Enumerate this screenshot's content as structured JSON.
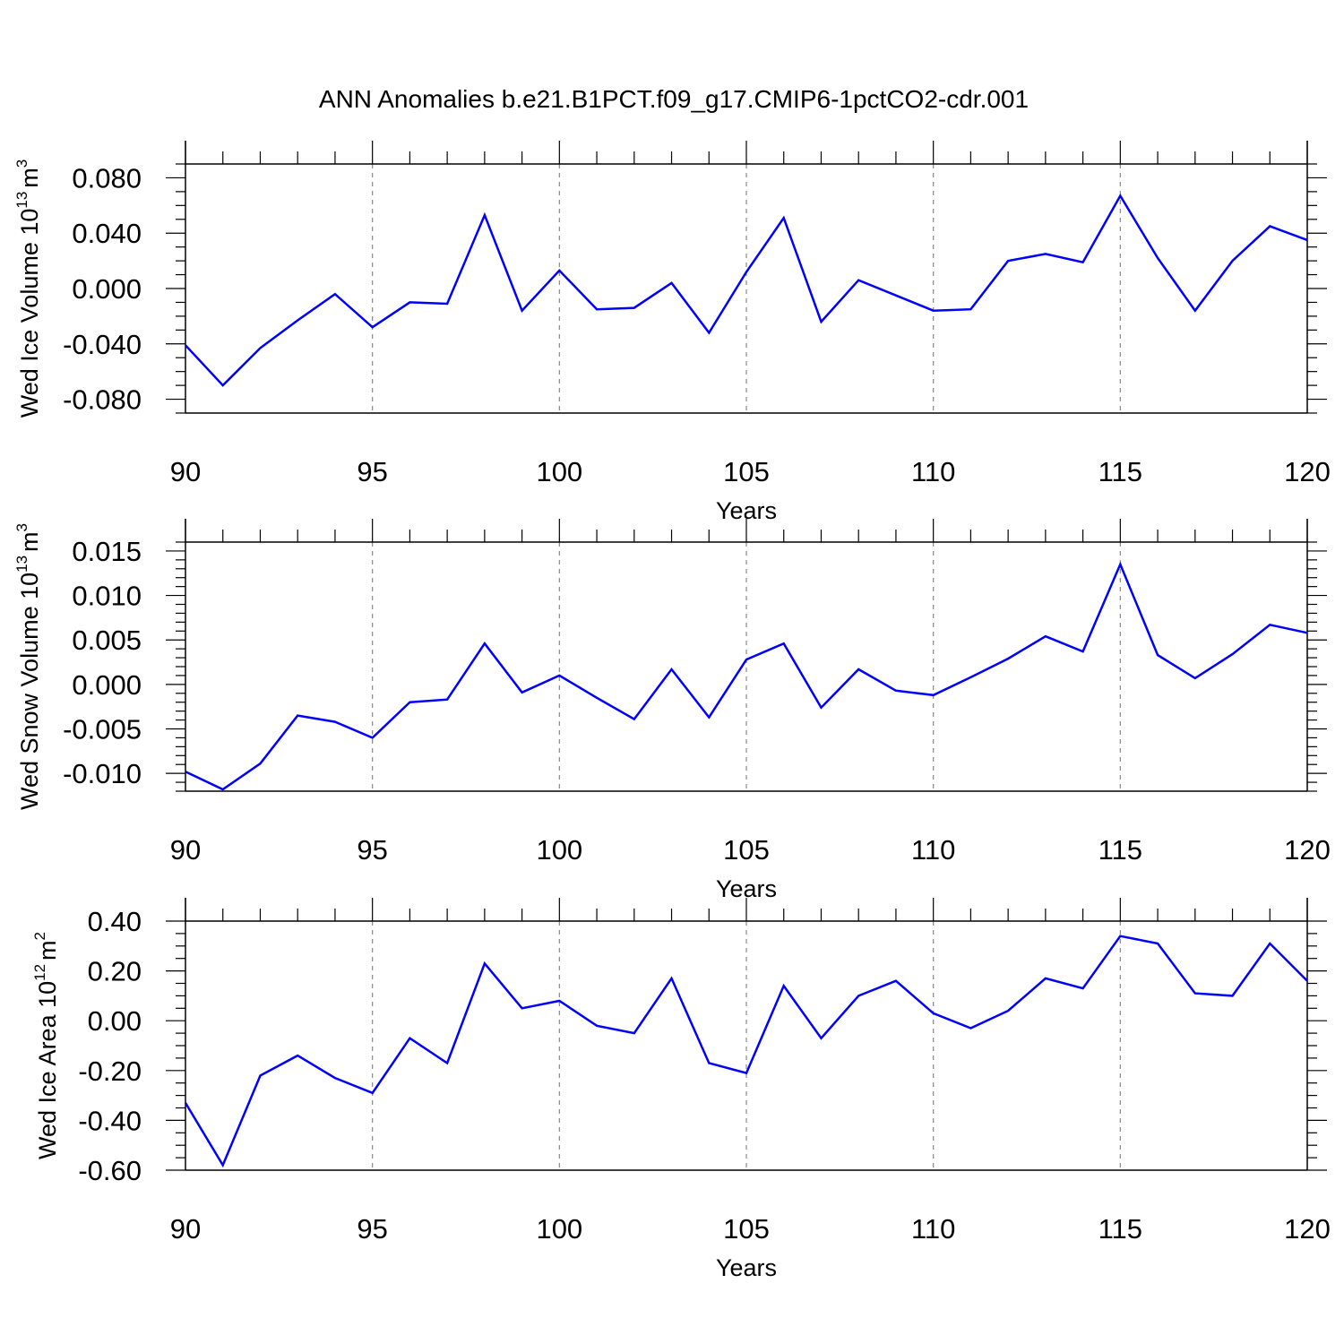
{
  "figure_title": "ANN Anomalies b.e21.B1PCT.f09_g17.CMIP6-1pctCO2-cdr.001",
  "colors": {
    "series": "#0000ff",
    "axes": "#000000",
    "grid": "#888888"
  },
  "chart_data": [
    {
      "type": "line",
      "xlabel": "Years",
      "ylabel": {
        "text": "Wed Ice Volume 10",
        "exponent": "13",
        "unit": "m",
        "unit_exponent": "3"
      },
      "xlim": [
        90,
        120
      ],
      "ylim": [
        -0.09,
        0.09
      ],
      "xticks": [
        90,
        95,
        100,
        105,
        110,
        115,
        120
      ],
      "xtick_labels": [
        "90",
        "95",
        "100",
        "105",
        "110",
        "115",
        "120"
      ],
      "yticks": [
        -0.08,
        -0.04,
        0.0,
        0.04,
        0.08
      ],
      "ytick_labels": [
        "-0.080",
        "-0.040",
        "0.000",
        "0.040",
        "0.080"
      ],
      "yminor_step": 0.01,
      "grid": "dashed vertical at major x ticks",
      "series": [
        {
          "name": "Wed Ice Volume",
          "x": [
            90,
            91,
            92,
            93,
            94,
            95,
            96,
            97,
            98,
            99,
            100,
            101,
            102,
            103,
            104,
            105,
            106,
            107,
            108,
            109,
            110,
            111,
            112,
            113,
            114,
            115,
            116,
            117,
            118,
            119,
            120
          ],
          "values": [
            -0.041,
            -0.07,
            -0.043,
            -0.023,
            -0.004,
            -0.028,
            -0.01,
            -0.011,
            0.053,
            -0.016,
            0.013,
            -0.015,
            -0.014,
            0.004,
            -0.032,
            0.012,
            0.051,
            -0.024,
            0.006,
            -0.005,
            -0.016,
            -0.015,
            0.02,
            0.025,
            0.019,
            0.067,
            0.022,
            -0.016,
            0.02,
            0.045,
            0.035
          ]
        }
      ]
    },
    {
      "type": "line",
      "xlabel": "Years",
      "ylabel": {
        "text": "Wed Snow Volume 10",
        "exponent": "13",
        "unit": "m",
        "unit_exponent": "3"
      },
      "xlim": [
        90,
        120
      ],
      "ylim": [
        -0.012,
        0.016
      ],
      "xticks": [
        90,
        95,
        100,
        105,
        110,
        115,
        120
      ],
      "xtick_labels": [
        "90",
        "95",
        "100",
        "105",
        "110",
        "115",
        "120"
      ],
      "yticks": [
        -0.01,
        -0.005,
        0.0,
        0.005,
        0.01,
        0.015
      ],
      "ytick_labels": [
        "-0.010",
        "-0.005",
        "0.000",
        "0.005",
        "0.010",
        "0.015"
      ],
      "yminor_step": 0.001,
      "grid": "dashed vertical at major x ticks",
      "series": [
        {
          "name": "Wed Snow Volume",
          "x": [
            90,
            91,
            92,
            93,
            94,
            95,
            96,
            97,
            98,
            99,
            100,
            101,
            102,
            103,
            104,
            105,
            106,
            107,
            108,
            109,
            110,
            111,
            112,
            113,
            114,
            115,
            116,
            117,
            118,
            119,
            120
          ],
          "values": [
            -0.0098,
            -0.0118,
            -0.0089,
            -0.0035,
            -0.0042,
            -0.006,
            -0.002,
            -0.0017,
            0.0046,
            -0.0009,
            0.001,
            -0.0015,
            -0.0039,
            0.0017,
            -0.0037,
            0.0028,
            0.0046,
            -0.0026,
            0.0017,
            -0.0007,
            -0.0012,
            0.0008,
            0.0029,
            0.0054,
            0.0037,
            0.0135,
            0.0033,
            0.0007,
            0.0034,
            0.0067,
            0.0058
          ]
        }
      ]
    },
    {
      "type": "line",
      "xlabel": "Years",
      "ylabel": {
        "text": "Wed Ice Area 10",
        "exponent": "12",
        "unit": "m",
        "unit_exponent": "2"
      },
      "xlim": [
        90,
        120
      ],
      "ylim": [
        -0.6,
        0.4
      ],
      "xticks": [
        90,
        95,
        100,
        105,
        110,
        115,
        120
      ],
      "xtick_labels": [
        "90",
        "95",
        "100",
        "105",
        "110",
        "115",
        "120"
      ],
      "yticks": [
        -0.6,
        -0.4,
        -0.2,
        0.0,
        0.2,
        0.4
      ],
      "ytick_labels": [
        "-0.60",
        "-0.40",
        "-0.20",
        "0.00",
        "0.20",
        "0.40"
      ],
      "yminor_step": 0.05,
      "grid": "dashed vertical at major x ticks",
      "series": [
        {
          "name": "Wed Ice Area",
          "x": [
            90,
            91,
            92,
            93,
            94,
            95,
            96,
            97,
            98,
            99,
            100,
            101,
            102,
            103,
            104,
            105,
            106,
            107,
            108,
            109,
            110,
            111,
            112,
            113,
            114,
            115,
            116,
            117,
            118,
            119,
            120
          ],
          "values": [
            -0.33,
            -0.58,
            -0.22,
            -0.14,
            -0.23,
            -0.29,
            -0.07,
            -0.17,
            0.23,
            0.05,
            0.08,
            -0.02,
            -0.05,
            0.17,
            -0.17,
            -0.21,
            0.14,
            -0.07,
            0.1,
            0.16,
            0.03,
            -0.03,
            0.04,
            0.17,
            0.13,
            0.34,
            0.31,
            0.11,
            0.1,
            0.31,
            0.16
          ]
        }
      ]
    }
  ]
}
